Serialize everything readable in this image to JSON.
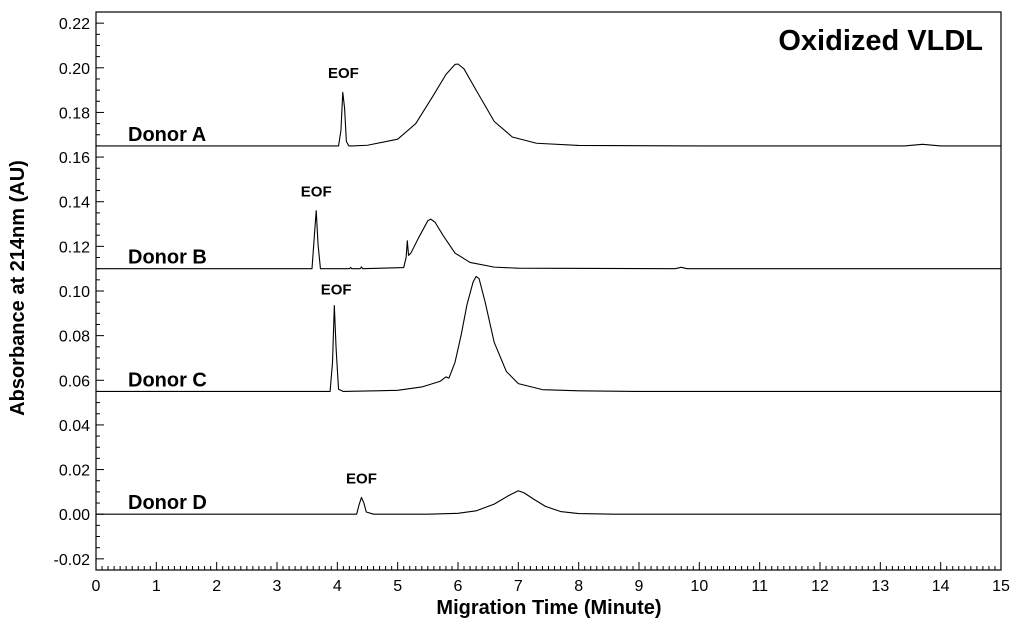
{
  "chart_data": {
    "type": "line",
    "title": "Oxidized VLDL",
    "xlabel": "Migration Time (Minute)",
    "ylabel": "Absorbance at 214nm (AU)",
    "xlim": [
      0,
      15
    ],
    "ylim": [
      -0.025,
      0.225
    ],
    "x_ticks": [
      "0",
      "1",
      "2",
      "3",
      "4",
      "5",
      "6",
      "7",
      "8",
      "9",
      "10",
      "11",
      "12",
      "13",
      "14",
      "15"
    ],
    "y_ticks": [
      "-0.02",
      "0.00",
      "0.02",
      "0.04",
      "0.06",
      "0.08",
      "0.10",
      "0.12",
      "0.14",
      "0.16",
      "0.18",
      "0.20",
      "0.22"
    ],
    "grid": false,
    "series": [
      {
        "name": "Donor A",
        "baseline": 0.165,
        "x": [
          0,
          4.02,
          4.06,
          4.09,
          4.12,
          4.15,
          4.19,
          4.25,
          4.5,
          5.0,
          5.3,
          5.6,
          5.8,
          5.95,
          6.0,
          6.1,
          6.3,
          6.6,
          6.9,
          7.3,
          8.0,
          10.0,
          13.4,
          13.7,
          14.0,
          15.0
        ],
        "y": [
          0.165,
          0.165,
          0.172,
          0.189,
          0.182,
          0.167,
          0.165,
          0.165,
          0.1653,
          0.168,
          0.175,
          0.188,
          0.197,
          0.2015,
          0.2017,
          0.1995,
          0.19,
          0.176,
          0.169,
          0.1662,
          0.1652,
          0.165,
          0.165,
          0.1657,
          0.165,
          0.165
        ],
        "label": "Donor A",
        "eof": {
          "label": "EOF",
          "x": 4.1,
          "y": 0.194
        }
      },
      {
        "name": "Donor B",
        "baseline": 0.11,
        "x": [
          0,
          3.58,
          3.62,
          3.65,
          3.68,
          3.72,
          3.8,
          4.2,
          4.22,
          4.24,
          4.38,
          4.4,
          4.42,
          5.1,
          5.14,
          5.16,
          5.18,
          5.22,
          5.35,
          5.5,
          5.55,
          5.62,
          5.75,
          5.95,
          6.2,
          6.6,
          7.0,
          9.6,
          9.7,
          9.8,
          15.0
        ],
        "y": [
          0.11,
          0.11,
          0.125,
          0.136,
          0.121,
          0.11,
          0.11,
          0.11,
          0.1105,
          0.11,
          0.11,
          0.1108,
          0.11,
          0.1105,
          0.115,
          0.1225,
          0.116,
          0.117,
          0.124,
          0.1315,
          0.1322,
          0.1308,
          0.125,
          0.117,
          0.1128,
          0.1107,
          0.1102,
          0.11,
          0.1106,
          0.11,
          0.11
        ],
        "label": "Donor B",
        "eof": {
          "label": "EOF",
          "x": 3.65,
          "y": 0.141
        }
      },
      {
        "name": "Donor C",
        "baseline": 0.055,
        "x": [
          0,
          3.88,
          3.92,
          3.95,
          3.98,
          4.02,
          4.1,
          5.0,
          5.4,
          5.7,
          5.8,
          5.85,
          5.95,
          6.05,
          6.15,
          6.25,
          6.3,
          6.35,
          6.45,
          6.6,
          6.8,
          7.0,
          7.4,
          8.0,
          9.0,
          15.0
        ],
        "y": [
          0.055,
          0.055,
          0.068,
          0.0935,
          0.074,
          0.056,
          0.055,
          0.0555,
          0.057,
          0.0595,
          0.0615,
          0.061,
          0.068,
          0.08,
          0.094,
          0.104,
          0.1065,
          0.1055,
          0.095,
          0.077,
          0.064,
          0.0585,
          0.0558,
          0.0553,
          0.055,
          0.055
        ],
        "label": "Donor C",
        "eof": {
          "label": "EOF",
          "x": 3.98,
          "y": 0.097
        }
      },
      {
        "name": "Donor D",
        "baseline": 0.0,
        "x": [
          0,
          4.32,
          4.36,
          4.4,
          4.44,
          4.48,
          4.6,
          5.5,
          6.0,
          6.3,
          6.6,
          6.85,
          7.0,
          7.1,
          7.25,
          7.45,
          7.7,
          8.0,
          8.6,
          15.0
        ],
        "y": [
          0.0,
          0.0,
          0.0042,
          0.0075,
          0.005,
          0.001,
          0.0,
          0.0,
          0.0004,
          0.0015,
          0.0045,
          0.0085,
          0.0105,
          0.0095,
          0.0068,
          0.0035,
          0.0012,
          0.0003,
          0.0,
          0.0
        ],
        "label": "Donor D",
        "eof": {
          "label": "EOF",
          "x": 4.4,
          "y": 0.0125
        }
      }
    ]
  }
}
